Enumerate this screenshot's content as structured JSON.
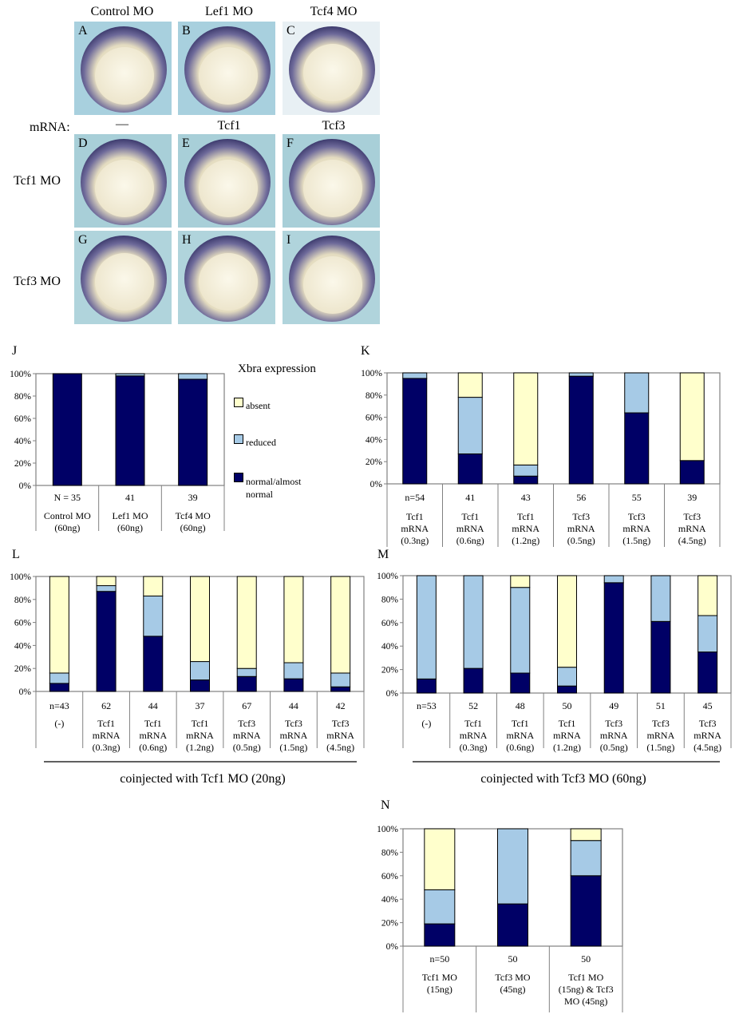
{
  "figure": {
    "column_headers": [
      "Control MO",
      "Lef1 MO",
      "Tcf4 MO"
    ],
    "mrna_label": "mRNA:",
    "mrna_headers": [
      "—",
      "Tcf1",
      "Tcf3"
    ],
    "row_labels": [
      "Tcf1 MO",
      "Tcf3 MO"
    ],
    "panel_letters": [
      "A",
      "B",
      "C",
      "D",
      "E",
      "F",
      "G",
      "H",
      "I"
    ]
  },
  "legend": {
    "title": "Xbra expression",
    "items": [
      {
        "label": "absent",
        "color": "#ffffcc"
      },
      {
        "label": "reduced",
        "color": "#a6cae6"
      },
      {
        "label": "normal/almost normal",
        "color": "#000066"
      }
    ]
  },
  "colors": {
    "absent": "#ffffcc",
    "reduced": "#a6cae6",
    "normal": "#000066"
  },
  "chart_data": [
    {
      "panel": "J",
      "type": "bar",
      "stacked": true,
      "ylim": [
        0,
        100
      ],
      "yticks": [
        "0%",
        "20%",
        "40%",
        "60%",
        "80%",
        "100%"
      ],
      "ns": [
        "N = 35",
        "41",
        "39"
      ],
      "categories": [
        [
          "Control MO",
          "(60ng)"
        ],
        [
          "Lef1 MO",
          "(60ng)"
        ],
        [
          "Tcf4 MO",
          "(60ng)"
        ]
      ],
      "series": [
        {
          "name": "normal/almost normal",
          "values": [
            100,
            98,
            95
          ]
        },
        {
          "name": "reduced",
          "values": [
            0,
            2,
            5
          ]
        },
        {
          "name": "absent",
          "values": [
            0,
            0,
            0
          ]
        }
      ]
    },
    {
      "panel": "K",
      "type": "bar",
      "stacked": true,
      "ylim": [
        0,
        100
      ],
      "yticks": [
        "0%",
        "20%",
        "40%",
        "60%",
        "80%",
        "100%"
      ],
      "ns": [
        "n=54",
        "41",
        "43",
        "56",
        "55",
        "39"
      ],
      "categories": [
        [
          "Tcf1",
          "mRNA",
          "(0.3ng)"
        ],
        [
          "Tcf1",
          "mRNA",
          "(0.6ng)"
        ],
        [
          "Tcf1",
          "mRNA",
          "(1.2ng)"
        ],
        [
          "Tcf3",
          "mRNA",
          "(0.5ng)"
        ],
        [
          "Tcf3",
          "mRNA",
          "(1.5ng)"
        ],
        [
          "Tcf3",
          "mRNA",
          "(4.5ng)"
        ]
      ],
      "series": [
        {
          "name": "normal/almost normal",
          "values": [
            95,
            27,
            7,
            97,
            64,
            21
          ]
        },
        {
          "name": "reduced",
          "values": [
            5,
            51,
            10,
            3,
            36,
            0
          ]
        },
        {
          "name": "absent",
          "values": [
            0,
            22,
            83,
            0,
            0,
            79
          ]
        }
      ]
    },
    {
      "panel": "L",
      "type": "bar",
      "stacked": true,
      "ylim": [
        0,
        100
      ],
      "yticks": [
        "0%",
        "20%",
        "40%",
        "60%",
        "80%",
        "100%"
      ],
      "ns": [
        "n=43",
        "62",
        "44",
        "37",
        "67",
        "44",
        "42"
      ],
      "categories": [
        [
          "(-)"
        ],
        [
          "Tcf1",
          "mRNA",
          "(0.3ng)"
        ],
        [
          "Tcf1",
          "mRNA",
          "(0.6ng)"
        ],
        [
          "Tcf1",
          "mRNA",
          "(1.2ng)"
        ],
        [
          "Tcf3",
          "mRNA",
          "(0.5ng)"
        ],
        [
          "Tcf3",
          "mRNA",
          "(1.5ng)"
        ],
        [
          "Tcf3",
          "mRNA",
          "(4.5ng)"
        ]
      ],
      "series": [
        {
          "name": "normal/almost normal",
          "values": [
            7,
            87,
            48,
            10,
            13,
            11,
            4
          ]
        },
        {
          "name": "reduced",
          "values": [
            9,
            5,
            35,
            16,
            7,
            14,
            12
          ]
        },
        {
          "name": "absent",
          "values": [
            84,
            8,
            17,
            74,
            80,
            75,
            84
          ]
        }
      ],
      "caption": "coinjected with Tcf1 MO (20ng)"
    },
    {
      "panel": "M",
      "type": "bar",
      "stacked": true,
      "ylim": [
        0,
        100
      ],
      "yticks": [
        "0%",
        "20%",
        "40%",
        "60%",
        "80%",
        "100%"
      ],
      "ns": [
        "n=53",
        "52",
        "48",
        "50",
        "49",
        "51",
        "45"
      ],
      "categories": [
        [
          "(-)"
        ],
        [
          "Tcf1",
          "mRNA",
          "(0.3ng)"
        ],
        [
          "Tcf1",
          "mRNA",
          "(0.6ng)"
        ],
        [
          "Tcf1",
          "mRNA",
          "(1.2ng)"
        ],
        [
          "Tcf3",
          "mRNA",
          "(0.5ng)"
        ],
        [
          "Tcf3",
          "mRNA",
          "(1.5ng)"
        ],
        [
          "Tcf3",
          "mRNA",
          "(4.5ng)"
        ]
      ],
      "series": [
        {
          "name": "normal/almost normal",
          "values": [
            12,
            21,
            17,
            6,
            94,
            61,
            35
          ]
        },
        {
          "name": "reduced",
          "values": [
            88,
            79,
            73,
            16,
            6,
            39,
            31
          ]
        },
        {
          "name": "absent",
          "values": [
            0,
            0,
            10,
            78,
            0,
            0,
            34
          ]
        }
      ],
      "caption": "coinjected with Tcf3 MO (60ng)"
    },
    {
      "panel": "N",
      "type": "bar",
      "stacked": true,
      "ylim": [
        0,
        100
      ],
      "yticks": [
        "0%",
        "20%",
        "40%",
        "60%",
        "80%",
        "100%"
      ],
      "ns": [
        "n=50",
        "50",
        "50"
      ],
      "categories": [
        [
          "Tcf1 MO",
          "(15ng)"
        ],
        [
          "Tcf3 MO",
          "(45ng)"
        ],
        [
          "Tcf1 MO",
          "(15ng) & Tcf3",
          "MO (45ng)"
        ]
      ],
      "series": [
        {
          "name": "normal/almost normal",
          "values": [
            19,
            36,
            60
          ]
        },
        {
          "name": "reduced",
          "values": [
            29,
            64,
            30
          ]
        },
        {
          "name": "absent",
          "values": [
            52,
            0,
            10
          ]
        }
      ]
    }
  ]
}
